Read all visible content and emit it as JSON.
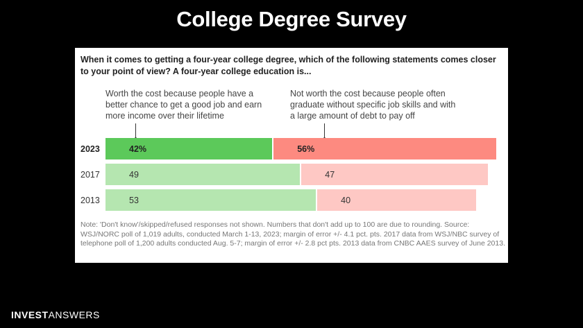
{
  "slide": {
    "title": "College Degree Survey"
  },
  "chart_data": {
    "type": "bar",
    "orientation": "horizontal",
    "stacked": true,
    "title": "When it comes to getting a four-year college degree, which of the following statements comes closer to your point of view? A four-year college education is...",
    "categories": [
      "2023",
      "2017",
      "2013"
    ],
    "category_labels": [
      "2023",
      "2017",
      "2013"
    ],
    "series": [
      {
        "name": "Worth the cost because people have a better chance to get a good job and earn more income over their lifetime",
        "values": [
          42,
          49,
          53
        ],
        "value_labels": [
          "42%",
          "49",
          "53"
        ],
        "colors": [
          "#5cc95a",
          "#b5e6b0",
          "#b5e6b0"
        ]
      },
      {
        "name": "Not worth the cost because people often graduate without specific job skills and with a large amount of debt to pay off",
        "values": [
          56,
          47,
          40
        ],
        "value_labels": [
          "56%",
          "47",
          "40"
        ],
        "colors": [
          "#fd8a80",
          "#fec8c4",
          "#fec8c4"
        ]
      }
    ],
    "note": "Note: 'Don't know'/skipped/refused responses not shown. Numbers that don't add up to 100 are due to rounding. Source: WSJ/NORC poll of 1,019 adults, conducted March 1-13, 2023; margin of error +/- 4.1 pct. pts. 2017 data from WSJ/NBC survey of telephone poll of 1,200 adults conducted Aug. 5-7; margin of error +/- 2.8 pct pts. 2013 data from CNBC AAES survey of June 2013."
  },
  "brand": {
    "part1": "INVEST",
    "part2": "ANSWERS"
  }
}
